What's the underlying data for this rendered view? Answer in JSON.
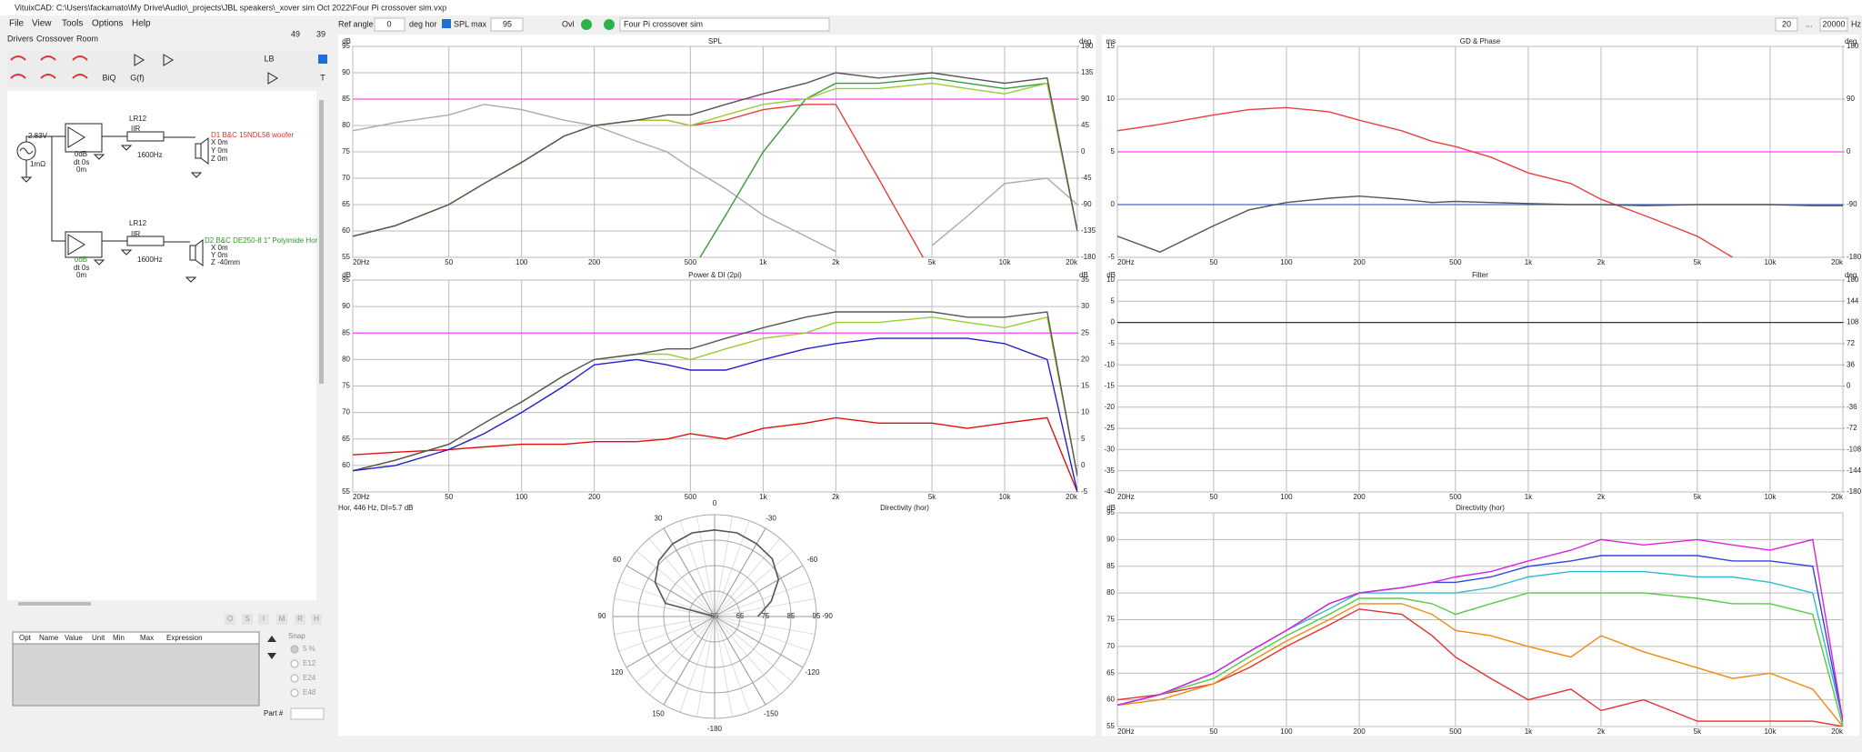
{
  "window": {
    "title": "VituixCAD: C:\\Users\\fackamato\\My Drive\\Audio\\_projects\\JBL speakers\\_xover sim Oct 2022\\Four Pi crossover sim.vxp",
    "menu": [
      "File",
      "View",
      "Tools",
      "Options",
      "Help"
    ]
  },
  "toolbar": {
    "ref_angle_label": "Ref angle",
    "ref_angle": 0,
    "deg_hor": "deg hor",
    "spl_max_label": "SPL max",
    "spl_max": 95,
    "ovl": "Ovl",
    "sim_name": "Four Pi crossover sim",
    "f_min": 20,
    "dots": "...",
    "f_max": 20000,
    "hz": "Hz"
  },
  "left_panel": {
    "tabs": [
      "Drivers",
      "Crossover",
      "Room"
    ],
    "num_a": 49,
    "num_b": 39,
    "buttons": [
      "LB",
      "BiQ",
      "G(f)",
      "T"
    ]
  },
  "schematic": {
    "source": {
      "voltage": "2.83V",
      "resistance": "1mΩ"
    },
    "channels": [
      {
        "gain": "0dB",
        "delay": "dt 0s",
        "offset": "0m",
        "filter": "LR12",
        "kind": "IIR",
        "freq": "1600Hz",
        "driver": "D1 B&C 15NDL58 woofer",
        "x": "X 0m",
        "y": "Y 0m",
        "z": "Z 0m"
      },
      {
        "gain": "0dB",
        "delay": "dt 0s",
        "offset": "0m",
        "filter": "LR12",
        "kind": "IIR",
        "freq": "1600Hz",
        "driver": "D2 B&C DE250-8 1\" Polyimide Hor",
        "x": "X 0m",
        "y": "Y 0m",
        "z": "Z -40mm"
      }
    ]
  },
  "params": {
    "buttons": [
      "O",
      "S",
      "I",
      "M",
      "R",
      "H"
    ],
    "columns": [
      "Opt",
      "Name",
      "Value",
      "Unit",
      "Min",
      "Max",
      "Expression"
    ],
    "snap_label": "Snap",
    "snap_options": [
      "5 %",
      "E12",
      "E24",
      "E48"
    ],
    "part_label": "Part #"
  },
  "freq_axis": {
    "xlim": [
      20,
      20000
    ],
    "ticks": [
      {
        "value": 20,
        "label": "20Hz"
      },
      50,
      100,
      200,
      500,
      {
        "value": 1000,
        "label": "1k"
      },
      {
        "value": 2000,
        "label": "2k"
      },
      {
        "value": 5000,
        "label": "5k"
      },
      {
        "value": 10000,
        "label": "10k"
      },
      {
        "value": 20000,
        "label": "20k"
      }
    ]
  },
  "freq_points": [
    20,
    30,
    50,
    70,
    100,
    150,
    200,
    300,
    400,
    500,
    700,
    1000,
    1500,
    2000,
    3000,
    5000,
    7000,
    10000,
    15000,
    20000
  ],
  "charts": [
    {
      "title": "SPL",
      "y_unit": "dB",
      "y2_unit": "deg",
      "ylim": [
        55,
        95
      ],
      "yticks": [
        55,
        60,
        65,
        70,
        75,
        80,
        85,
        90,
        95
      ],
      "y2lim": [
        -180,
        180
      ],
      "y2ticks": [
        -180,
        -135,
        -90,
        -45,
        0,
        45,
        90,
        135,
        180
      ],
      "hlines": [
        {
          "value": 85,
          "color": "#ff44ff"
        }
      ],
      "series": [
        {
          "color": "#aaaaaa",
          "axis": "y2",
          "values": [
            36,
            50,
            63,
            81,
            72,
            54,
            45,
            18,
            0,
            -27,
            -63,
            -108,
            -144,
            -170,
            null,
            -160,
            -110,
            -54,
            -45,
            -90
          ]
        },
        {
          "color": "#e84040",
          "values": [
            59,
            61,
            65,
            69,
            73,
            78,
            80,
            81,
            81,
            80,
            81,
            83,
            84,
            84,
            70,
            52,
            null,
            null,
            null,
            null
          ]
        },
        {
          "color": "#3a9a3a",
          "values": [
            null,
            null,
            null,
            null,
            null,
            null,
            null,
            null,
            null,
            52,
            63,
            75,
            85,
            88,
            88,
            89,
            88,
            87,
            88,
            60
          ]
        },
        {
          "color": "#99cc33",
          "values": [
            59,
            61,
            65,
            69,
            73,
            78,
            80,
            81,
            81,
            80,
            82,
            84,
            85,
            87,
            87,
            88,
            87,
            86,
            88,
            60
          ]
        },
        {
          "color": "#555555",
          "values": [
            59,
            61,
            65,
            69,
            73,
            78,
            80,
            81,
            82,
            82,
            84,
            86,
            88,
            90,
            89,
            90,
            89,
            88,
            89,
            60
          ]
        }
      ]
    },
    {
      "title": "GD & Phase",
      "y_unit": "ms",
      "y2_unit": "deg",
      "ylim": [
        -5,
        15
      ],
      "yticks": [
        -5,
        0,
        5,
        10,
        15
      ],
      "y2lim": [
        -180,
        180
      ],
      "y2ticks": [
        -180,
        -90,
        0,
        90,
        180
      ],
      "hlines": [
        {
          "value": 5,
          "color": "#ff44ff"
        },
        {
          "value": 0,
          "color": "#4466cc"
        }
      ],
      "series": [
        {
          "color": "#e84040",
          "values": [
            7,
            7.6,
            8.5,
            9,
            9.2,
            8.8,
            8,
            7,
            6,
            5.5,
            4.5,
            3,
            2,
            0.5,
            -1,
            -3,
            -5,
            null,
            null,
            null
          ]
        },
        {
          "color": "#555555",
          "values": [
            -3,
            -4.5,
            -2,
            -0.5,
            0.2,
            0.6,
            0.8,
            0.5,
            0.2,
            0.3,
            0.2,
            0.1,
            0,
            0,
            -0.1,
            0,
            0,
            0,
            -0.1,
            -0.1
          ]
        }
      ]
    },
    {
      "title": "Power & DI (2pi)",
      "y_unit": "dB",
      "y2_unit": "dB",
      "ylim": [
        55,
        95
      ],
      "yticks": [
        55,
        60,
        65,
        70,
        75,
        80,
        85,
        90,
        95
      ],
      "y2lim": [
        -5,
        35
      ],
      "y2ticks": [
        -5,
        0,
        5,
        10,
        15,
        20,
        25,
        30,
        35
      ],
      "hlines": [
        {
          "value": 85,
          "color": "#ff44ff"
        }
      ],
      "series": [
        {
          "color": "#e01010",
          "axis": "y2",
          "values": [
            2,
            2.5,
            3,
            3.5,
            4,
            4,
            4.5,
            4.5,
            5,
            6,
            5,
            7,
            8,
            9,
            8,
            8,
            7,
            8,
            9,
            -5
          ]
        },
        {
          "color": "#99cc33",
          "values": [
            59,
            61,
            64,
            68,
            72,
            77,
            80,
            81,
            81,
            80,
            82,
            84,
            85,
            87,
            87,
            88,
            87,
            86,
            88,
            58
          ]
        },
        {
          "color": "#555555",
          "values": [
            59,
            61,
            64,
            68,
            72,
            77,
            80,
            81,
            82,
            82,
            84,
            86,
            88,
            89,
            89,
            89,
            88,
            88,
            89,
            58
          ]
        },
        {
          "color": "#2222cc",
          "values": [
            59,
            60,
            63,
            66,
            70,
            75,
            79,
            80,
            79,
            78,
            78,
            80,
            82,
            83,
            84,
            84,
            84,
            83,
            80,
            55
          ]
        }
      ]
    },
    {
      "title": "Filter",
      "y_unit": "dB",
      "y2_unit": "deg",
      "ylim": [
        -40,
        10
      ],
      "yticks": [
        -40,
        -35,
        -30,
        -25,
        -20,
        -15,
        -10,
        -5,
        0,
        5,
        10
      ],
      "y2lim": [
        -180,
        180
      ],
      "y2ticks": [
        -180,
        -144,
        -108,
        -72,
        -36,
        0,
        36,
        72,
        108,
        144,
        180
      ],
      "hlines": [
        {
          "value": 0,
          "color": "#333333"
        }
      ],
      "series": []
    },
    {
      "title": "Directivity (hor)",
      "y_unit": "dB",
      "ylim": [
        55,
        95
      ],
      "yticks": [
        55,
        60,
        65,
        70,
        75,
        80,
        85,
        90,
        95
      ],
      "hlines": [],
      "series": [
        {
          "color": "#e83030",
          "values": [
            60,
            61,
            63,
            66,
            70,
            74,
            77,
            76,
            72,
            68,
            64,
            60,
            62,
            58,
            60,
            56,
            56,
            56,
            56,
            55
          ]
        },
        {
          "color": "#f08a10",
          "values": [
            59,
            60,
            63,
            67,
            71,
            75,
            78,
            78,
            76,
            73,
            72,
            70,
            68,
            72,
            69,
            66,
            64,
            65,
            62,
            55
          ]
        },
        {
          "color": "#55cc44",
          "values": [
            59,
            61,
            64,
            68,
            72,
            76,
            79,
            79,
            78,
            76,
            78,
            80,
            80,
            80,
            80,
            79,
            78,
            78,
            76,
            55
          ]
        },
        {
          "color": "#33bbcc",
          "values": [
            59,
            61,
            65,
            69,
            73,
            77,
            80,
            80,
            80,
            80,
            81,
            83,
            84,
            84,
            84,
            83,
            83,
            82,
            80,
            56
          ]
        },
        {
          "color": "#3344dd",
          "values": [
            59,
            61,
            65,
            69,
            73,
            78,
            80,
            81,
            82,
            82,
            83,
            85,
            86,
            87,
            87,
            87,
            86,
            86,
            85,
            56
          ]
        },
        {
          "color": "#dd22dd",
          "values": [
            59,
            61,
            65,
            69,
            73,
            78,
            80,
            81,
            82,
            83,
            84,
            86,
            88,
            90,
            89,
            90,
            89,
            88,
            90,
            56
          ]
        }
      ]
    }
  ],
  "polar": {
    "header": "Hor, 446 Hz, DI=5.7 dB",
    "title": "Directivity (hor)",
    "angle_ticks": [
      0,
      30,
      -30,
      60,
      -60,
      90,
      -90,
      120,
      -120,
      150,
      -150,
      -180
    ],
    "rlim": [
      55,
      95
    ],
    "rticks": [
      55,
      65,
      75,
      85,
      95
    ],
    "color": "#555555",
    "angles": [
      90,
      75,
      60,
      45,
      30,
      15,
      0,
      -15,
      -30,
      -45,
      -60,
      -75,
      -90
    ],
    "r": [
      55,
      75,
      82,
      86,
      88,
      89,
      89,
      89,
      88,
      87,
      84,
      78,
      72
    ]
  }
}
